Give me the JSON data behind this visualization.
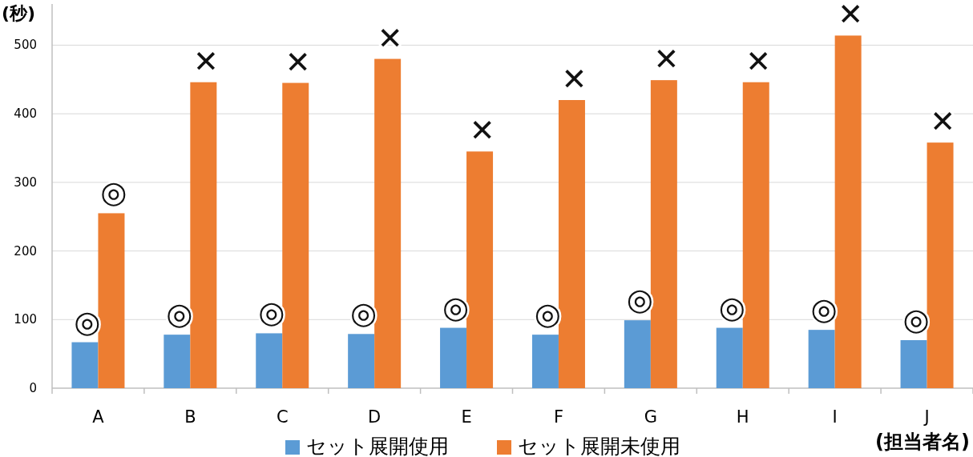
{
  "chart_data": {
    "type": "bar",
    "ylabel": "(秒)",
    "xlabel": "(担当者名)",
    "categories": [
      "A",
      "B",
      "C",
      "D",
      "E",
      "F",
      "G",
      "H",
      "I",
      "J"
    ],
    "series": [
      {
        "name": "セット展開使用",
        "color": "#5b9bd5",
        "values": [
          67,
          78,
          80,
          79,
          88,
          78,
          99,
          88,
          85,
          70
        ]
      },
      {
        "name": "セット展開未使用",
        "color": "#ed7d31",
        "values": [
          255,
          446,
          445,
          480,
          345,
          420,
          449,
          446,
          514,
          358
        ]
      }
    ],
    "ylim": [
      0,
      560
    ],
    "yticks": [
      0,
      100,
      200,
      300,
      400,
      500
    ],
    "grid": "y",
    "legend": "bottom",
    "annotations": [
      {
        "text": "◎",
        "x": "A",
        "y": 67
      },
      {
        "text": "◎",
        "x": "A",
        "y": 255
      },
      {
        "text": "◎",
        "x": "B",
        "y": 78
      },
      {
        "text": "✕",
        "x": "B",
        "y": 446
      },
      {
        "text": "◎",
        "x": "C",
        "y": 80
      },
      {
        "text": "✕",
        "x": "C",
        "y": 445
      },
      {
        "text": "◎",
        "x": "D",
        "y": 79
      },
      {
        "text": "✕",
        "x": "D",
        "y": 480
      },
      {
        "text": "◎",
        "x": "E",
        "y": 88
      },
      {
        "text": "✕",
        "x": "E",
        "y": 345
      },
      {
        "text": "◎",
        "x": "F",
        "y": 78
      },
      {
        "text": "✕",
        "x": "F",
        "y": 420
      },
      {
        "text": "◎",
        "x": "G",
        "y": 99
      },
      {
        "text": "✕",
        "x": "G",
        "y": 449
      },
      {
        "text": "◎",
        "x": "H",
        "y": 88
      },
      {
        "text": "✕",
        "x": "H",
        "y": 446
      },
      {
        "text": "◎",
        "x": "I",
        "y": 85
      },
      {
        "text": "✕",
        "x": "I",
        "y": 514
      },
      {
        "text": "◎",
        "x": "J",
        "y": 70
      },
      {
        "text": "✕",
        "x": "J",
        "y": 358
      }
    ]
  }
}
